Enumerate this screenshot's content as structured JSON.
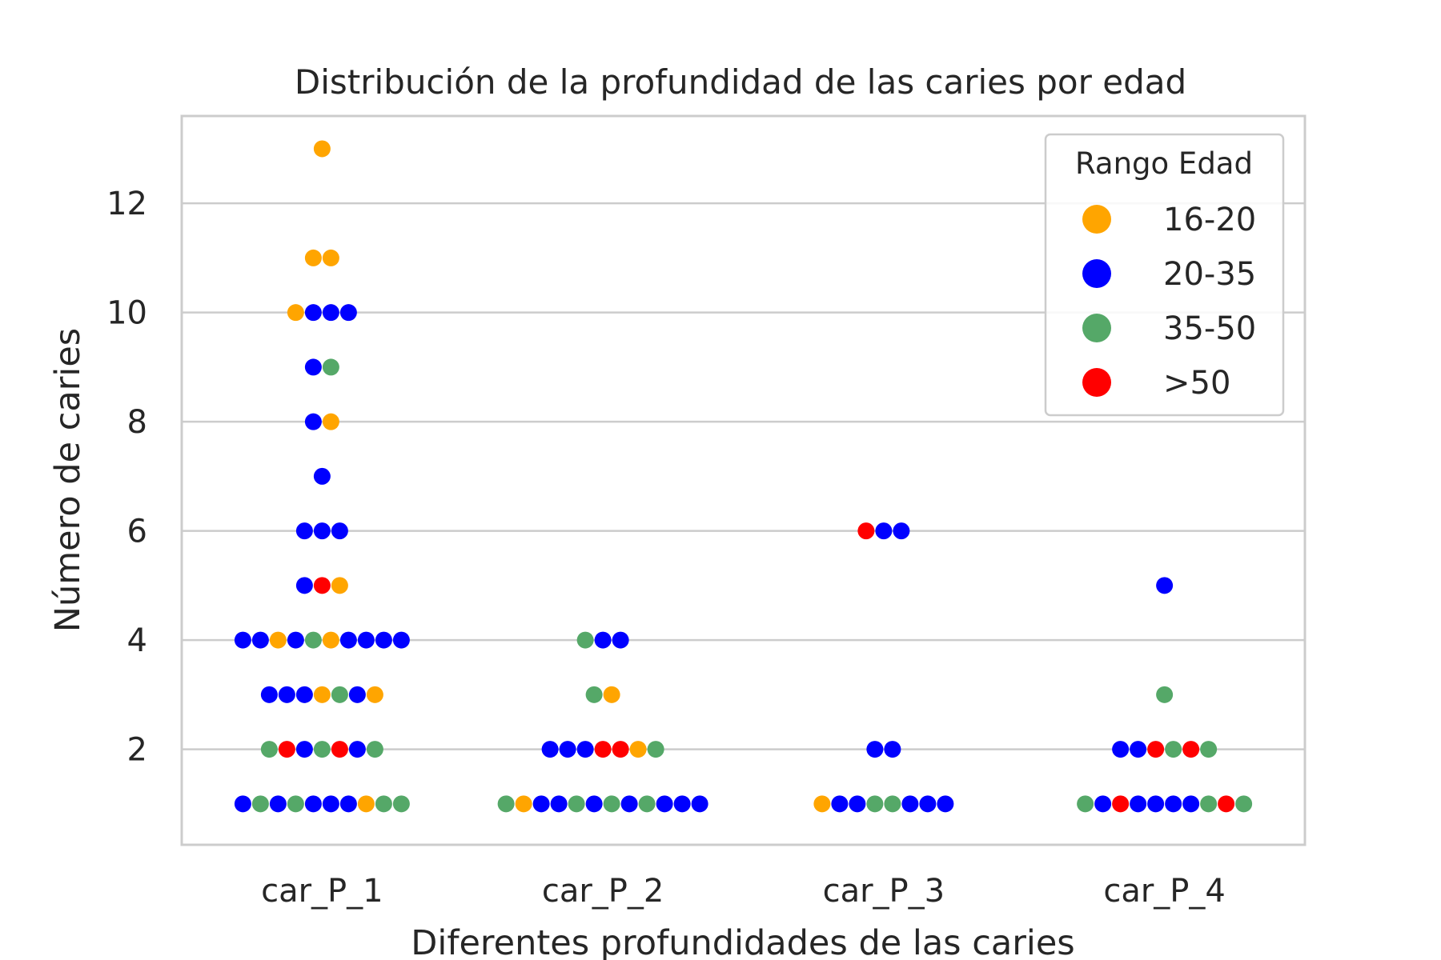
{
  "chart_data": {
    "type": "scatter",
    "title": "Distribución de la profundidad de las caries por edad",
    "xlabel": "Diferentes profundidades de las caries",
    "ylabel": "Número de caries",
    "categories": [
      "car_P_1",
      "car_P_2",
      "car_P_3",
      "car_P_4"
    ],
    "yticks": [
      2,
      4,
      6,
      8,
      10,
      12
    ],
    "ylim": [
      0.25,
      13.6
    ],
    "grid": true,
    "legend": {
      "title": "Rango Edad",
      "placement": "top-right",
      "entries": [
        {
          "label": "16-20",
          "color": "#ffa500"
        },
        {
          "label": "20-35",
          "color": "#0000ff"
        },
        {
          "label": "35-50",
          "color": "#55a868"
        },
        {
          "label": ">50",
          "color": "#ff0000"
        }
      ]
    },
    "series": [
      {
        "category": "car_P_1",
        "rows": [
          {
            "y": 13,
            "groups": [
              "16-20"
            ]
          },
          {
            "y": 11,
            "groups": [
              "16-20",
              "16-20"
            ]
          },
          {
            "y": 10,
            "groups": [
              "16-20",
              "20-35",
              "20-35",
              "20-35"
            ]
          },
          {
            "y": 9,
            "groups": [
              "20-35",
              "35-50"
            ]
          },
          {
            "y": 8,
            "groups": [
              "20-35",
              "16-20"
            ]
          },
          {
            "y": 7,
            "groups": [
              "20-35"
            ]
          },
          {
            "y": 6,
            "groups": [
              "20-35",
              "20-35",
              "20-35"
            ]
          },
          {
            "y": 5,
            "groups": [
              "20-35",
              ">50",
              "16-20"
            ]
          },
          {
            "y": 4,
            "groups": [
              "20-35",
              "20-35",
              "16-20",
              "20-35",
              "35-50",
              "16-20",
              "20-35",
              "20-35",
              "20-35",
              "20-35"
            ]
          },
          {
            "y": 3,
            "groups": [
              "20-35",
              "20-35",
              "20-35",
              "16-20",
              "35-50",
              "20-35",
              "16-20"
            ]
          },
          {
            "y": 2,
            "groups": [
              "35-50",
              ">50",
              "20-35",
              "35-50",
              ">50",
              "20-35",
              "35-50"
            ]
          },
          {
            "y": 1,
            "groups": [
              "20-35",
              "35-50",
              "20-35",
              "35-50",
              "20-35",
              "20-35",
              "20-35",
              "16-20",
              "35-50",
              "35-50"
            ]
          }
        ]
      },
      {
        "category": "car_P_2",
        "rows": [
          {
            "y": 4,
            "groups": [
              "35-50",
              "20-35",
              "20-35"
            ]
          },
          {
            "y": 3,
            "groups": [
              "35-50",
              "16-20"
            ]
          },
          {
            "y": 2,
            "groups": [
              "20-35",
              "20-35",
              "20-35",
              ">50",
              ">50",
              "16-20",
              "35-50"
            ]
          },
          {
            "y": 1,
            "groups": [
              "35-50",
              "16-20",
              "20-35",
              "20-35",
              "35-50",
              "20-35",
              "35-50",
              "20-35",
              "35-50",
              "20-35",
              "20-35",
              "20-35"
            ]
          }
        ]
      },
      {
        "category": "car_P_3",
        "rows": [
          {
            "y": 6,
            "groups": [
              ">50",
              "20-35",
              "20-35"
            ]
          },
          {
            "y": 2,
            "groups": [
              "20-35",
              "20-35"
            ]
          },
          {
            "y": 1,
            "groups": [
              "16-20",
              "20-35",
              "20-35",
              "35-50",
              "35-50",
              "20-35",
              "20-35",
              "20-35"
            ]
          }
        ]
      },
      {
        "category": "car_P_4",
        "rows": [
          {
            "y": 5,
            "groups": [
              "20-35"
            ]
          },
          {
            "y": 3,
            "groups": [
              "35-50"
            ]
          },
          {
            "y": 2,
            "groups": [
              "20-35",
              "20-35",
              ">50",
              "35-50",
              ">50",
              "35-50"
            ]
          },
          {
            "y": 1,
            "groups": [
              "35-50",
              "20-35",
              ">50",
              "20-35",
              "20-35",
              "20-35",
              "20-35",
              "35-50",
              ">50",
              "35-50"
            ]
          }
        ]
      }
    ]
  }
}
